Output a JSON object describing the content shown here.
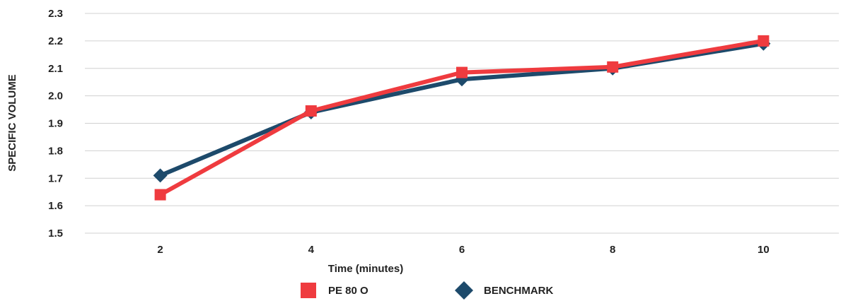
{
  "chart_data": {
    "type": "line",
    "title": "",
    "xlabel": "Time (minutes)",
    "ylabel": "SPECIFIC VOLUME",
    "categories": [
      "2",
      "4",
      "6",
      "8",
      "10"
    ],
    "ylim": [
      1.5,
      2.3
    ],
    "yticks": [
      "1.5",
      "1.6",
      "1.7",
      "1.8",
      "1.9",
      "2.0",
      "2.1",
      "2.2",
      "2.3"
    ],
    "grid": true,
    "legend_position": "bottom",
    "series": [
      {
        "name": "BENCHMARK",
        "values": [
          1.71,
          1.94,
          2.06,
          2.1,
          2.19
        ],
        "color": "#1d4a6b",
        "marker": "diamond"
      },
      {
        "name": "PE 80 O",
        "values": [
          1.64,
          1.945,
          2.085,
          2.105,
          2.2
        ],
        "color": "#ef3b3f",
        "marker": "square"
      }
    ],
    "legend_order": [
      "PE 80 O",
      "BENCHMARK"
    ]
  }
}
